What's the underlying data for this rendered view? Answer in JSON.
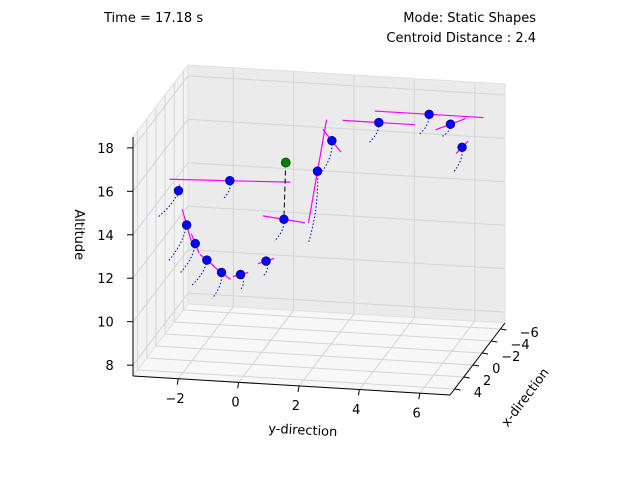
{
  "header": {
    "time_text": "Time = 17.18 s",
    "mode_text": "Mode: Static Shapes",
    "centroid_text": "Centroid Distance : 2.4"
  },
  "chart_data": {
    "type": "scatter",
    "projection": "3d",
    "xlabel": "x-direction",
    "ylabel": "y-direction",
    "zlabel": "Altitude",
    "xlim": [
      -7,
      5
    ],
    "ylim": [
      -3.5,
      7
    ],
    "zlim": [
      7.5,
      18.5
    ],
    "x_ticks": [
      "−6",
      "−4",
      "−2",
      "0",
      "2",
      "4"
    ],
    "y_ticks": [
      "−2",
      "0",
      "2",
      "4",
      "6"
    ],
    "z_ticks": [
      "8",
      "10",
      "12",
      "14",
      "16",
      "18"
    ],
    "grid": true,
    "colors": {
      "agent": "#0000ff",
      "target": "#008000",
      "heading": "#ff00ff",
      "trajectory": "#0000bb",
      "link": "#000000",
      "grid": "#d4d4d4",
      "pane": "#f2f2f2"
    },
    "target_point": {
      "x": 0.0,
      "y": 0.8,
      "z": 16.3
    },
    "agents": [
      {
        "x": 1.0,
        "y": -2.6,
        "z": 15.0,
        "heading": [
          0.4,
          0.1,
          0.4
        ]
      },
      {
        "x": 1.2,
        "y": -2.3,
        "z": 13.5,
        "heading": [
          0.3,
          -0.1,
          0.8
        ]
      },
      {
        "x": 1.3,
        "y": -2.0,
        "z": 12.7,
        "heading": [
          0.2,
          -0.1,
          0.5
        ]
      },
      {
        "x": 1.4,
        "y": -1.6,
        "z": 12.0,
        "heading": [
          0.2,
          -0.2,
          0.3
        ]
      },
      {
        "x": 1.5,
        "y": -1.1,
        "z": 11.5,
        "heading": [
          0.0,
          -0.3,
          0.3
        ]
      },
      {
        "x": 1.3,
        "y": -0.5,
        "z": 11.4,
        "heading": [
          -0.3,
          -0.3,
          -0.2
        ]
      },
      {
        "x": 1.0,
        "y": 0.3,
        "z": 12.0,
        "heading": [
          -0.2,
          -0.3,
          -0.2
        ]
      },
      {
        "x": 0.4,
        "y": 0.8,
        "z": 13.8,
        "heading": [
          0.0,
          -0.7,
          0.1
        ]
      },
      {
        "x": 1.0,
        "y": -0.9,
        "z": 15.6,
        "heading": [
          0.0,
          2.0,
          0.1
        ]
      },
      {
        "x": -1.0,
        "y": 1.7,
        "z": 15.7,
        "heading": [
          0.0,
          0.3,
          2.4
        ]
      },
      {
        "x": -1.5,
        "y": 2.1,
        "z": 17.0,
        "heading": [
          0.0,
          -0.3,
          0.5
        ]
      },
      {
        "x": -4.5,
        "y": 3.2,
        "z": 17.1,
        "heading": [
          0.0,
          -1.2,
          0.0
        ]
      },
      {
        "x": -5.6,
        "y": 4.7,
        "z": 17.3,
        "heading": [
          0.0,
          -1.8,
          0.0
        ]
      },
      {
        "x": -6.3,
        "y": 5.3,
        "z": 16.7,
        "heading": [
          0.0,
          -0.5,
          -0.3
        ]
      },
      {
        "x": -6.2,
        "y": 5.7,
        "z": 15.7,
        "heading": [
          0.0,
          0.2,
          0.3
        ]
      }
    ]
  }
}
